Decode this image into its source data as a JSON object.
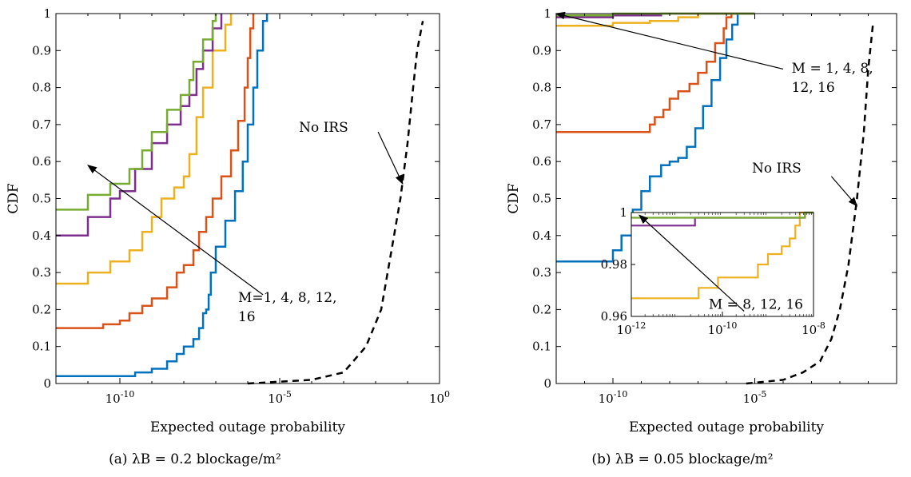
{
  "figure": {
    "panels": [
      {
        "caption": "(a) λB = 0.2 blockage/m²"
      },
      {
        "caption": "(b) λB = 0.05 blockage/m²"
      }
    ]
  },
  "chart_data": [
    {
      "type": "line",
      "xlabel": "Expected outage probability",
      "ylabel": "CDF",
      "xscale": "log",
      "xlim": [
        1e-12,
        1
      ],
      "ylim": [
        0,
        1
      ],
      "xticks": [
        {
          "v": 1e-10,
          "label": "10^-10"
        },
        {
          "v": 1e-05,
          "label": "10^-5"
        },
        {
          "v": 1,
          "label": "10^0"
        }
      ],
      "yticks": [
        {
          "v": 0,
          "label": "0"
        },
        {
          "v": 0.1,
          "label": "0.1"
        },
        {
          "v": 0.2,
          "label": "0.2"
        },
        {
          "v": 0.3,
          "label": "0.3"
        },
        {
          "v": 0.4,
          "label": "0.4"
        },
        {
          "v": 0.5,
          "label": "0.5"
        },
        {
          "v": 0.6,
          "label": "0.6"
        },
        {
          "v": 0.7,
          "label": "0.7"
        },
        {
          "v": 0.8,
          "label": "0.8"
        },
        {
          "v": 0.9,
          "label": "0.9"
        },
        {
          "v": 1,
          "label": "1"
        }
      ],
      "grid": false,
      "annotations": [
        {
          "text": "M=1, 4, 8, 12,",
          "line2": "16",
          "arrow_from": [
            3e-06,
            0.24
          ],
          "arrow_to": [
            1e-11,
            0.59
          ],
          "text_at": [
            5e-07,
            0.22
          ]
        },
        {
          "text": "No IRS",
          "arrow_from": [
            0.012,
            0.68
          ],
          "arrow_to": [
            0.07,
            0.54
          ],
          "text_at": [
            4e-05,
            0.68
          ]
        }
      ],
      "series": [
        {
          "color": "#0072BD",
          "dashed": false,
          "points": [
            [
              1e-12,
              0.02
            ],
            [
              1e-10,
              0.02
            ],
            [
              3e-10,
              0.03
            ],
            [
              1e-09,
              0.04
            ],
            [
              3e-09,
              0.06
            ],
            [
              6e-09,
              0.08
            ],
            [
              1e-08,
              0.1
            ],
            [
              2e-08,
              0.12
            ],
            [
              3e-08,
              0.15
            ],
            [
              4e-08,
              0.19
            ],
            [
              5e-08,
              0.2
            ],
            [
              6e-08,
              0.24
            ],
            [
              7e-08,
              0.3
            ],
            [
              1e-07,
              0.37
            ],
            [
              2e-07,
              0.44
            ],
            [
              4e-07,
              0.52
            ],
            [
              7e-07,
              0.6
            ],
            [
              1e-06,
              0.7
            ],
            [
              1.5e-06,
              0.8
            ],
            [
              2e-06,
              0.9
            ],
            [
              3e-06,
              0.98
            ],
            [
              4e-06,
              1.0
            ]
          ]
        },
        {
          "color": "#D95319",
          "dashed": false,
          "points": [
            [
              1e-12,
              0.15
            ],
            [
              3e-11,
              0.16
            ],
            [
              1e-10,
              0.17
            ],
            [
              2e-10,
              0.19
            ],
            [
              5e-10,
              0.21
            ],
            [
              1e-09,
              0.23
            ],
            [
              3e-09,
              0.26
            ],
            [
              6e-09,
              0.3
            ],
            [
              1e-08,
              0.32
            ],
            [
              2e-08,
              0.36
            ],
            [
              3e-08,
              0.41
            ],
            [
              5e-08,
              0.45
            ],
            [
              8e-08,
              0.5
            ],
            [
              1.5e-07,
              0.56
            ],
            [
              3e-07,
              0.63
            ],
            [
              5e-07,
              0.71
            ],
            [
              8e-07,
              0.8
            ],
            [
              1e-06,
              0.88
            ],
            [
              1.2e-06,
              0.96
            ],
            [
              1.5e-06,
              1.0
            ]
          ]
        },
        {
          "color": "#EDB120",
          "dashed": false,
          "points": [
            [
              1e-12,
              0.27
            ],
            [
              1e-11,
              0.3
            ],
            [
              5e-11,
              0.33
            ],
            [
              2e-10,
              0.36
            ],
            [
              5e-10,
              0.41
            ],
            [
              1e-09,
              0.45
            ],
            [
              2e-09,
              0.5
            ],
            [
              5e-09,
              0.53
            ],
            [
              1e-08,
              0.56
            ],
            [
              1.5e-08,
              0.62
            ],
            [
              2.5e-08,
              0.72
            ],
            [
              4e-08,
              0.8
            ],
            [
              8e-08,
              0.9
            ],
            [
              2e-07,
              0.97
            ],
            [
              3e-07,
              1.0
            ]
          ]
        },
        {
          "color": "#7E2F8E",
          "dashed": false,
          "points": [
            [
              1e-12,
              0.4
            ],
            [
              1e-11,
              0.45
            ],
            [
              5e-11,
              0.5
            ],
            [
              1e-10,
              0.52
            ],
            [
              3e-10,
              0.58
            ],
            [
              1e-09,
              0.65
            ],
            [
              3e-09,
              0.7
            ],
            [
              8e-09,
              0.75
            ],
            [
              1.5e-08,
              0.78
            ],
            [
              2.5e-08,
              0.85
            ],
            [
              4e-08,
              0.9
            ],
            [
              8e-08,
              0.96
            ],
            [
              1.5e-07,
              1.0
            ]
          ]
        },
        {
          "color": "#77AC30",
          "dashed": false,
          "points": [
            [
              1e-12,
              0.47
            ],
            [
              1e-11,
              0.51
            ],
            [
              5e-11,
              0.54
            ],
            [
              2e-10,
              0.58
            ],
            [
              5e-10,
              0.63
            ],
            [
              1e-09,
              0.68
            ],
            [
              3e-09,
              0.74
            ],
            [
              8e-09,
              0.78
            ],
            [
              1.5e-08,
              0.82
            ],
            [
              2e-08,
              0.87
            ],
            [
              4e-08,
              0.93
            ],
            [
              8e-08,
              0.98
            ],
            [
              1e-07,
              1.0
            ]
          ]
        },
        {
          "color": "#000000",
          "dashed": true,
          "points": [
            [
              1e-06,
              0.0
            ],
            [
              0.0001,
              0.01
            ],
            [
              0.001,
              0.03
            ],
            [
              0.005,
              0.1
            ],
            [
              0.015,
              0.2
            ],
            [
              0.03,
              0.35
            ],
            [
              0.06,
              0.5
            ],
            [
              0.1,
              0.65
            ],
            [
              0.15,
              0.8
            ],
            [
              0.2,
              0.9
            ],
            [
              0.3,
              0.98
            ]
          ]
        }
      ]
    },
    {
      "type": "line",
      "xlabel": "Expected outage probability",
      "ylabel": "CDF",
      "xscale": "log",
      "xlim": [
        1e-12,
        1
      ],
      "ylim": [
        0,
        1
      ],
      "xticks": [
        {
          "v": 1e-10,
          "label": "10^-10"
        },
        {
          "v": 1e-05,
          "label": "10^-5"
        }
      ],
      "yticks": [
        {
          "v": 0,
          "label": "0"
        },
        {
          "v": 0.1,
          "label": "0.1"
        },
        {
          "v": 0.2,
          "label": "0.2"
        },
        {
          "v": 0.3,
          "label": "0.3"
        },
        {
          "v": 0.4,
          "label": "0.4"
        },
        {
          "v": 0.5,
          "label": "0.5"
        },
        {
          "v": 0.6,
          "label": "0.6"
        },
        {
          "v": 0.7,
          "label": "0.7"
        },
        {
          "v": 0.8,
          "label": "0.8"
        },
        {
          "v": 0.9,
          "label": "0.9"
        },
        {
          "v": 1,
          "label": "1"
        }
      ],
      "grid": false,
      "annotations": [
        {
          "text": "M = 1, 4, 8,",
          "line2": "12, 16",
          "arrow_from": [
            0.0001,
            0.85
          ],
          "arrow_to": [
            1e-12,
            1.0
          ],
          "text_at": [
            0.0002,
            0.84
          ]
        },
        {
          "text": "No IRS",
          "arrow_from": [
            0.005,
            0.56
          ],
          "arrow_to": [
            0.04,
            0.48
          ],
          "text_at": [
            8e-06,
            0.57
          ]
        }
      ],
      "series": [
        {
          "color": "#0072BD",
          "dashed": false,
          "points": [
            [
              1e-12,
              0.33
            ],
            [
              5e-11,
              0.33
            ],
            [
              1e-10,
              0.36
            ],
            [
              2e-10,
              0.4
            ],
            [
              5e-10,
              0.47
            ],
            [
              1e-09,
              0.52
            ],
            [
              2e-09,
              0.56
            ],
            [
              5e-09,
              0.59
            ],
            [
              1e-08,
              0.6
            ],
            [
              2e-08,
              0.61
            ],
            [
              4e-08,
              0.64
            ],
            [
              8e-08,
              0.69
            ],
            [
              1.5e-07,
              0.75
            ],
            [
              3e-07,
              0.82
            ],
            [
              6e-07,
              0.88
            ],
            [
              1e-06,
              0.93
            ],
            [
              1.6e-06,
              0.97
            ],
            [
              2.5e-06,
              1.0
            ]
          ]
        },
        {
          "color": "#D95319",
          "dashed": false,
          "points": [
            [
              1e-12,
              0.68
            ],
            [
              1e-09,
              0.68
            ],
            [
              2e-09,
              0.7
            ],
            [
              3e-09,
              0.72
            ],
            [
              6e-09,
              0.74
            ],
            [
              1e-08,
              0.77
            ],
            [
              2e-08,
              0.79
            ],
            [
              5e-08,
              0.81
            ],
            [
              1e-07,
              0.84
            ],
            [
              2e-07,
              0.87
            ],
            [
              4e-07,
              0.92
            ],
            [
              8e-07,
              0.96
            ],
            [
              1e-06,
              0.99
            ],
            [
              1.5e-06,
              1.0
            ]
          ]
        },
        {
          "color": "#EDB120",
          "dashed": false,
          "points": [
            [
              1e-12,
              0.967
            ],
            [
              2e-11,
              0.967
            ],
            [
              1e-10,
              0.975
            ],
            [
              2e-09,
              0.98
            ],
            [
              2e-08,
              0.99
            ],
            [
              1e-07,
              1.0
            ],
            [
              1e-05,
              1.0
            ]
          ]
        },
        {
          "color": "#7E2F8E",
          "dashed": false,
          "points": [
            [
              1e-12,
              0.99
            ],
            [
              1e-11,
              0.99
            ],
            [
              1e-10,
              0.995
            ],
            [
              5e-09,
              1.0
            ],
            [
              1e-05,
              1.0
            ]
          ]
        },
        {
          "color": "#77AC30",
          "dashed": false,
          "points": [
            [
              1e-12,
              0.995
            ],
            [
              1e-10,
              1.0
            ],
            [
              1e-05,
              1.0
            ]
          ]
        },
        {
          "color": "#000000",
          "dashed": true,
          "points": [
            [
              5e-06,
              0.0
            ],
            [
              0.0001,
              0.01
            ],
            [
              0.0005,
              0.03
            ],
            [
              0.002,
              0.06
            ],
            [
              0.005,
              0.12
            ],
            [
              0.01,
              0.2
            ],
            [
              0.02,
              0.32
            ],
            [
              0.04,
              0.5
            ],
            [
              0.07,
              0.68
            ],
            [
              0.1,
              0.85
            ],
            [
              0.15,
              0.98
            ]
          ]
        }
      ],
      "inset": {
        "xlim": [
          1e-12,
          1e-08
        ],
        "ylim": [
          0.96,
          1.0
        ],
        "xticks": [
          {
            "v": 1e-12,
            "label": "10^-12"
          },
          {
            "v": 1e-10,
            "label": "10^-10"
          },
          {
            "v": 1e-08,
            "label": "10^-8"
          }
        ],
        "yticks": [
          {
            "v": 0.96,
            "label": "0.96"
          },
          {
            "v": 0.98,
            "label": "0.98"
          },
          {
            "v": 1.0,
            "label": "1"
          }
        ],
        "annotation": {
          "text": "M = 8, 12, 16",
          "arrow_from": [
            3e-10,
            0.962
          ],
          "arrow_to": [
            1.5e-12,
            0.999
          ],
          "text_at": [
            5e-11,
            0.963
          ]
        },
        "series": [
          {
            "color": "#EDB120",
            "points": [
              [
                1e-12,
                0.967
              ],
              [
                1e-11,
                0.967
              ],
              [
                3e-11,
                0.971
              ],
              [
                8e-11,
                0.975
              ],
              [
                3e-10,
                0.975
              ],
              [
                6e-10,
                0.98
              ],
              [
                1e-09,
                0.984
              ],
              [
                2e-09,
                0.987
              ],
              [
                3e-09,
                0.99
              ],
              [
                4e-09,
                0.995
              ],
              [
                5e-09,
                1.0
              ],
              [
                1e-08,
                1.0
              ]
            ]
          },
          {
            "color": "#7E2F8E",
            "points": [
              [
                1e-12,
                0.995
              ],
              [
                2e-11,
                0.995
              ],
              [
                2.5e-11,
                0.998
              ],
              [
                6e-09,
                0.998
              ],
              [
                6.5e-09,
                1.0
              ],
              [
                1e-08,
                1.0
              ]
            ]
          },
          {
            "color": "#77AC30",
            "points": [
              [
                1e-12,
                0.998
              ],
              [
                6e-09,
                0.998
              ],
              [
                6.5e-09,
                1.0
              ],
              [
                1e-08,
                1.0
              ]
            ]
          }
        ]
      }
    }
  ]
}
